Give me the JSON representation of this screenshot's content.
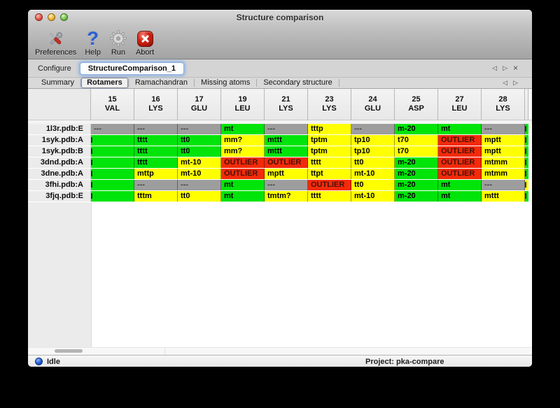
{
  "window": {
    "title": "Structure comparison"
  },
  "toolbar": {
    "items": [
      {
        "label": "Preferences",
        "icon": "tools-icon"
      },
      {
        "label": "Help",
        "icon": "question-icon"
      },
      {
        "label": "Run",
        "icon": "gear-icon"
      },
      {
        "label": "Abort",
        "icon": "abort-icon"
      }
    ]
  },
  "configure": {
    "label": "Configure",
    "value": "StructureComparison_1",
    "nav": {
      "prev": "◁",
      "next": "▷",
      "close": "×"
    }
  },
  "tabs": {
    "items": [
      "Summary",
      "Rotamers",
      "Ramachandran",
      "Missing atoms",
      "Secondary structure"
    ],
    "selected": "Rotamers",
    "nav": {
      "prev": "◁",
      "next": "▷"
    }
  },
  "colors": {
    "green": "#00e40a",
    "yellow": "#ffff00",
    "red": "#f32a0a",
    "gray": "#9d9d9d"
  },
  "table": {
    "columns": [
      {
        "num": "15",
        "res": "VAL"
      },
      {
        "num": "16",
        "res": "LYS"
      },
      {
        "num": "17",
        "res": "GLU"
      },
      {
        "num": "19",
        "res": "LEU"
      },
      {
        "num": "21",
        "res": "LYS"
      },
      {
        "num": "23",
        "res": "LYS"
      },
      {
        "num": "24",
        "res": "GLU"
      },
      {
        "num": "25",
        "res": "ASP"
      },
      {
        "num": "27",
        "res": "LEU"
      },
      {
        "num": "28",
        "res": "LYS"
      }
    ],
    "rows": [
      {
        "label": "1l3r.pdb:E",
        "next_col_color": "green",
        "cells": [
          {
            "text": "---",
            "color": "gray"
          },
          {
            "text": "---",
            "color": "gray"
          },
          {
            "text": "---",
            "color": "gray"
          },
          {
            "text": "mt",
            "color": "green"
          },
          {
            "text": "---",
            "color": "gray"
          },
          {
            "text": "tttp",
            "color": "yellow"
          },
          {
            "text": "---",
            "color": "gray"
          },
          {
            "text": "m-20",
            "color": "green"
          },
          {
            "text": "mt",
            "color": "green"
          },
          {
            "text": "---",
            "color": "gray"
          }
        ]
      },
      {
        "label": "1syk.pdb:A",
        "next_col_color": "green",
        "cells": [
          {
            "text": "",
            "color": "green",
            "clipped": true
          },
          {
            "text": "tttt",
            "color": "green"
          },
          {
            "text": "tt0",
            "color": "green"
          },
          {
            "text": "mm?",
            "color": "yellow"
          },
          {
            "text": "mttt",
            "color": "green"
          },
          {
            "text": "tptm",
            "color": "yellow"
          },
          {
            "text": "tp10",
            "color": "yellow"
          },
          {
            "text": "t70",
            "color": "yellow"
          },
          {
            "text": "OUTLIER",
            "color": "red"
          },
          {
            "text": "mptt",
            "color": "yellow"
          }
        ]
      },
      {
        "label": "1syk.pdb:B",
        "next_col_color": "green",
        "cells": [
          {
            "text": "",
            "color": "green",
            "clipped": true
          },
          {
            "text": "tttt",
            "color": "green"
          },
          {
            "text": "tt0",
            "color": "green"
          },
          {
            "text": "mm?",
            "color": "yellow"
          },
          {
            "text": "mttt",
            "color": "green"
          },
          {
            "text": "tptm",
            "color": "yellow"
          },
          {
            "text": "tp10",
            "color": "yellow"
          },
          {
            "text": "t70",
            "color": "yellow"
          },
          {
            "text": "OUTLIER",
            "color": "red"
          },
          {
            "text": "mptt",
            "color": "yellow"
          }
        ]
      },
      {
        "label": "3dnd.pdb:A",
        "next_col_color": "green",
        "cells": [
          {
            "text": "",
            "color": "green",
            "clipped": true
          },
          {
            "text": "tttt",
            "color": "green"
          },
          {
            "text": "mt-10",
            "color": "yellow"
          },
          {
            "text": "OUTLIER",
            "color": "red"
          },
          {
            "text": "OUTLIER",
            "color": "red"
          },
          {
            "text": "tttt",
            "color": "yellow"
          },
          {
            "text": "tt0",
            "color": "yellow"
          },
          {
            "text": "m-20",
            "color": "green"
          },
          {
            "text": "OUTLIER",
            "color": "red"
          },
          {
            "text": "mtmm",
            "color": "yellow"
          }
        ]
      },
      {
        "label": "3dne.pdb:A",
        "next_col_color": "green",
        "cells": [
          {
            "text": "",
            "color": "green",
            "clipped": true
          },
          {
            "text": "mttp",
            "color": "yellow"
          },
          {
            "text": "mt-10",
            "color": "yellow"
          },
          {
            "text": "OUTLIER",
            "color": "red"
          },
          {
            "text": "mptt",
            "color": "yellow"
          },
          {
            "text": "ttpt",
            "color": "yellow"
          },
          {
            "text": "mt-10",
            "color": "yellow"
          },
          {
            "text": "m-20",
            "color": "green"
          },
          {
            "text": "OUTLIER",
            "color": "red"
          },
          {
            "text": "mtmm",
            "color": "yellow"
          }
        ]
      },
      {
        "label": "3fhi.pdb:A",
        "next_col_color": "yellow",
        "cells": [
          {
            "text": "",
            "color": "green",
            "clipped": true
          },
          {
            "text": "---",
            "color": "gray"
          },
          {
            "text": "---",
            "color": "gray"
          },
          {
            "text": "mt",
            "color": "green"
          },
          {
            "text": "---",
            "color": "gray"
          },
          {
            "text": "OUTLIER",
            "color": "red"
          },
          {
            "text": "tt0",
            "color": "yellow"
          },
          {
            "text": "m-20",
            "color": "green"
          },
          {
            "text": "mt",
            "color": "green"
          },
          {
            "text": "---",
            "color": "gray"
          }
        ]
      },
      {
        "label": "3fjq.pdb:E",
        "next_col_color": "green",
        "cells": [
          {
            "text": "",
            "color": "green",
            "clipped": true
          },
          {
            "text": "tttm",
            "color": "yellow"
          },
          {
            "text": "tt0",
            "color": "yellow"
          },
          {
            "text": "mt",
            "color": "green"
          },
          {
            "text": "tmtm?",
            "color": "yellow"
          },
          {
            "text": "tttt",
            "color": "yellow"
          },
          {
            "text": "mt-10",
            "color": "yellow"
          },
          {
            "text": "m-20",
            "color": "green"
          },
          {
            "text": "mt",
            "color": "green"
          },
          {
            "text": "mttt",
            "color": "yellow"
          }
        ]
      }
    ]
  },
  "statusbar": {
    "status": "Idle",
    "project": "Project: pka-compare"
  }
}
